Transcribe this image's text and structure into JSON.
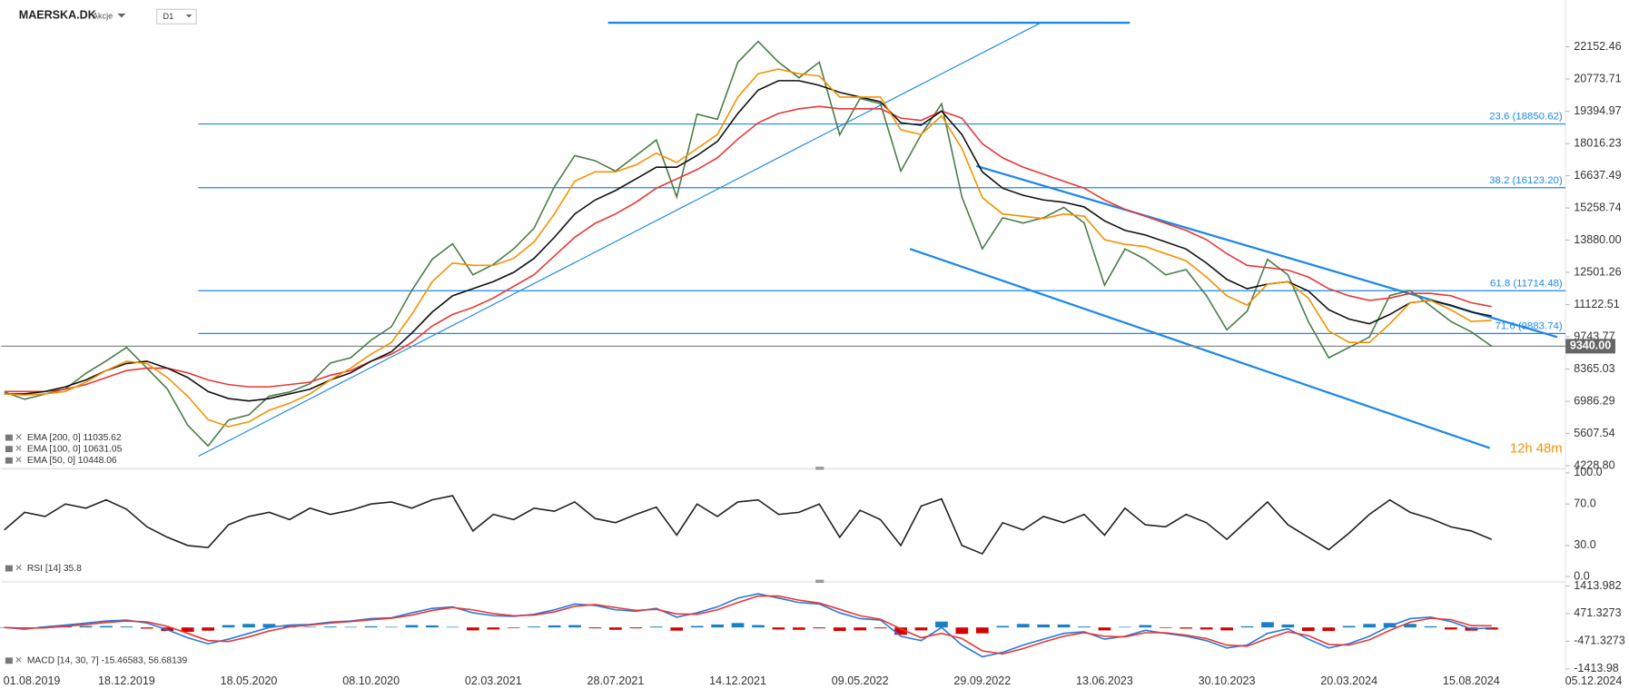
{
  "header": {
    "symbol": "MAERSKA.DK",
    "asset_type": "Akcje",
    "interval": "D1"
  },
  "countdown": "12h 48m",
  "chart_data": [
    {
      "type": "line",
      "ylim": [
        4096,
        24021
      ],
      "yticks": [
        22152.46,
        20773.71,
        19394.97,
        18016.23,
        16637.49,
        15258.74,
        {
          "value": 13880,
          "label": "13880.00"
        },
        12501.26,
        11122.51,
        9743.77,
        8365.03,
        6986.29,
        5607.54,
        {
          "value": 4228.8,
          "label": "4228.80"
        }
      ],
      "levels": [
        {
          "value": 18850.62,
          "label": "23.6 (18850.62)"
        },
        {
          "value": 16123.2,
          "label": "38.2 (16123.20)"
        },
        {
          "value": 11714.48,
          "label": "61.8 (11714.48)"
        },
        {
          "value": 9883.74,
          "label": "71.6 (9883.74)"
        },
        {
          "value": 23180
        }
      ],
      "level_color": "#1e88e5",
      "last_price": {
        "value": 9340,
        "label": "9340.00"
      },
      "series": [
        {
          "color": "#4a7d4a",
          "values": [
            7380,
            7069,
            7290,
            7512,
            8178,
            8711,
            9288,
            8400,
            7512,
            5960,
            5072,
            6181,
            6403,
            7202,
            7380,
            7734,
            8622,
            8844,
            9598,
            10175,
            11728,
            13060,
            13725,
            12394,
            12838,
            13503,
            14391,
            16166,
            17497,
            17275,
            16831,
            17497,
            18163,
            15722,
            19272,
            19050,
            21491,
            22378,
            21491,
            20825,
            21491,
            18385,
            19938,
            19716,
            16831,
            18385,
            19716,
            15722,
            13503,
            14834,
            14613,
            14834,
            15278,
            14613,
            11950,
            13503,
            13060,
            12394,
            12616,
            11506,
            10042,
            10841,
            13060,
            12394,
            10397,
            8844,
            9288,
            9731,
            11506,
            11728,
            11062,
            10397,
            9953,
            9340,
            null,
            null,
            null,
            null,
            null
          ]
        },
        {
          "name": "EMA [200, 0]  11035.62",
          "color": "#e53935",
          "values": [
            7400,
            7400,
            7400,
            7500,
            7700,
            8000,
            8300,
            8400,
            8400,
            8200,
            7900,
            7700,
            7600,
            7600,
            7700,
            7800,
            8100,
            8300,
            8700,
            9000,
            9500,
            10200,
            10700,
            11000,
            11400,
            11900,
            12400,
            13200,
            14000,
            14600,
            15000,
            15500,
            16100,
            16500,
            16900,
            17400,
            18200,
            18900,
            19300,
            19500,
            19600,
            19500,
            19500,
            19500,
            19100,
            19000,
            19400,
            19100,
            18000,
            17400,
            17000,
            16700,
            16400,
            16100,
            15600,
            15200,
            14900,
            14600,
            14300,
            13900,
            13300,
            12800,
            12700,
            12600,
            12300,
            11800,
            11500,
            11300,
            11400,
            11600,
            11600,
            11500,
            11200,
            11035.62,
            null,
            null,
            null,
            null,
            null
          ]
        },
        {
          "name": "EMA [100, 0]  10631.05",
          "color": "#111111",
          "values": [
            7300,
            7300,
            7400,
            7600,
            7900,
            8300,
            8600,
            8700,
            8400,
            8000,
            7400,
            7100,
            7000,
            7100,
            7300,
            7500,
            7900,
            8200,
            8700,
            9100,
            9900,
            10800,
            11500,
            11800,
            12100,
            12500,
            13100,
            14000,
            15000,
            15600,
            16000,
            16500,
            17000,
            17000,
            17500,
            18100,
            19300,
            20300,
            20700,
            20700,
            20500,
            20200,
            20000,
            19800,
            18900,
            18800,
            19400,
            18400,
            16800,
            16100,
            15800,
            15600,
            15500,
            15300,
            14700,
            14300,
            14100,
            13800,
            13500,
            12900,
            12200,
            11800,
            12000,
            12100,
            11700,
            10900,
            10500,
            10300,
            10700,
            11200,
            11300,
            11100,
            10800,
            10631.05,
            null,
            null,
            null,
            null,
            null
          ]
        },
        {
          "name": "EMA [50, 0]  10448.06",
          "color": "#f39200",
          "values": [
            7300,
            7250,
            7300,
            7400,
            7800,
            8300,
            8700,
            8600,
            8000,
            7200,
            6200,
            5900,
            6100,
            6600,
            6900,
            7300,
            7900,
            8400,
            9000,
            9500,
            10700,
            12100,
            12900,
            12800,
            12800,
            13100,
            13800,
            15000,
            16400,
            16800,
            16800,
            17100,
            17600,
            17200,
            17800,
            18400,
            20000,
            21000,
            21200,
            21000,
            20900,
            20000,
            20000,
            20000,
            18600,
            18400,
            19200,
            17800,
            15700,
            15000,
            14900,
            14800,
            15000,
            14900,
            13900,
            13700,
            13600,
            13300,
            13000,
            12300,
            11500,
            11100,
            12000,
            12100,
            11400,
            10000,
            9500,
            9500,
            10300,
            11200,
            11300,
            10900,
            10400,
            10448.06,
            null,
            null,
            null,
            null,
            null
          ]
        }
      ]
    },
    {
      "type": "line",
      "ylim": [
        0,
        100
      ],
      "yticks": [
        {
          "value": 100,
          "label": "100.0"
        },
        {
          "value": 70,
          "label": "70.0"
        },
        {
          "value": 30,
          "label": "30.0"
        },
        {
          "value": 0,
          "label": "0.0"
        }
      ],
      "series": [
        {
          "name": "RSI [14]  35.8",
          "color": "#222222",
          "values": [
            45,
            62,
            58,
            70,
            66,
            74,
            65,
            48,
            38,
            30,
            28,
            50,
            58,
            62,
            55,
            66,
            60,
            64,
            70,
            72,
            66,
            74,
            78,
            44,
            60,
            55,
            66,
            63,
            72,
            56,
            52,
            60,
            67,
            40,
            70,
            58,
            72,
            74,
            60,
            62,
            70,
            38,
            64,
            55,
            30,
            68,
            75,
            30,
            22,
            52,
            45,
            58,
            52,
            60,
            40,
            66,
            50,
            48,
            60,
            52,
            36,
            54,
            72,
            50,
            38,
            26,
            42,
            60,
            74,
            62,
            56,
            48,
            44,
            35.8,
            null,
            null,
            null,
            null,
            null
          ]
        }
      ]
    },
    {
      "type": "line",
      "ylim": [
        -1413.982,
        1413.982
      ],
      "yticks": [
        1413.982,
        471.3273,
        -471.3273,
        {
          "value": -1413.982,
          "label": "-1413.98"
        }
      ],
      "categories": [
        "01.08.2019",
        null,
        null,
        null,
        null,
        null,
        "18.12.2019",
        null,
        null,
        null,
        null,
        null,
        "18.05.2020",
        null,
        null,
        null,
        null,
        null,
        "08.10.2020",
        null,
        null,
        null,
        null,
        null,
        "02.03.2021",
        null,
        null,
        null,
        null,
        null,
        "28.07.2021",
        null,
        null,
        null,
        null,
        null,
        "14.12.2021",
        null,
        null,
        null,
        null,
        null,
        "09.05.2022",
        null,
        null,
        null,
        null,
        null,
        "29.09.2022",
        null,
        null,
        null,
        null,
        null,
        "13.06.2023",
        null,
        null,
        null,
        null,
        null,
        "30.10.2023",
        null,
        null,
        null,
        null,
        null,
        "20.03.2024",
        null,
        null,
        null,
        null,
        null,
        "15.08.2024",
        null,
        null,
        null,
        null,
        null,
        "05.12.2024"
      ],
      "series": [
        {
          "type": "bar",
          "colors": [
            "#1b7fc4",
            "#d50000"
          ],
          "values": [
            0,
            -30,
            30,
            40,
            50,
            50,
            30,
            -40,
            -120,
            -150,
            -110,
            80,
            120,
            120,
            60,
            20,
            30,
            20,
            40,
            20,
            80,
            70,
            20,
            -100,
            -70,
            -20,
            30,
            70,
            80,
            -30,
            -80,
            -30,
            30,
            -110,
            50,
            100,
            150,
            80,
            -70,
            -80,
            -30,
            -120,
            -100,
            -30,
            -250,
            -100,
            200,
            -220,
            -200,
            50,
            120,
            100,
            100,
            30,
            -100,
            20,
            80,
            -20,
            -40,
            -70,
            -100,
            40,
            180,
            100,
            -120,
            -120,
            50,
            120,
            150,
            120,
            40,
            -70,
            -110,
            -72,
            null,
            null,
            null,
            null,
            null
          ]
        },
        {
          "name": "MACD [14, 30, 7]  -15.46583,  56.68139",
          "color": "#2979d9",
          "values": [
            0,
            -60,
            20,
            80,
            150,
            220,
            250,
            150,
            -80,
            -350,
            -560,
            -400,
            -200,
            0,
            80,
            100,
            180,
            220,
            300,
            330,
            500,
            650,
            700,
            500,
            400,
            380,
            450,
            600,
            800,
            750,
            600,
            550,
            650,
            350,
            500,
            700,
            1000,
            1150,
            1000,
            850,
            800,
            500,
            300,
            250,
            -300,
            -450,
            0,
            -600,
            -1000,
            -850,
            -600,
            -400,
            -200,
            -150,
            -400,
            -300,
            -100,
            -200,
            -300,
            -450,
            -700,
            -600,
            -200,
            -50,
            -400,
            -700,
            -550,
            -300,
            50,
            300,
            350,
            200,
            -50,
            -15.46583,
            null,
            null,
            null,
            null,
            null
          ]
        },
        {
          "color": "#e53935",
          "values": [
            0,
            -30,
            -10,
            40,
            100,
            170,
            220,
            190,
            40,
            -200,
            -450,
            -480,
            -320,
            -120,
            20,
            80,
            150,
            200,
            260,
            310,
            420,
            580,
            680,
            600,
            470,
            400,
            420,
            530,
            720,
            780,
            680,
            580,
            620,
            460,
            450,
            600,
            850,
            1070,
            1070,
            930,
            830,
            620,
            400,
            280,
            -50,
            -350,
            -200,
            -380,
            -800,
            -900,
            -720,
            -500,
            -300,
            -180,
            -300,
            -320,
            -180,
            -180,
            -260,
            -380,
            -600,
            -640,
            -380,
            -150,
            -280,
            -580,
            -600,
            -420,
            -100,
            180,
            310,
            270,
            60,
            56.68139,
            null,
            null,
            null,
            null,
            null
          ]
        }
      ]
    }
  ]
}
